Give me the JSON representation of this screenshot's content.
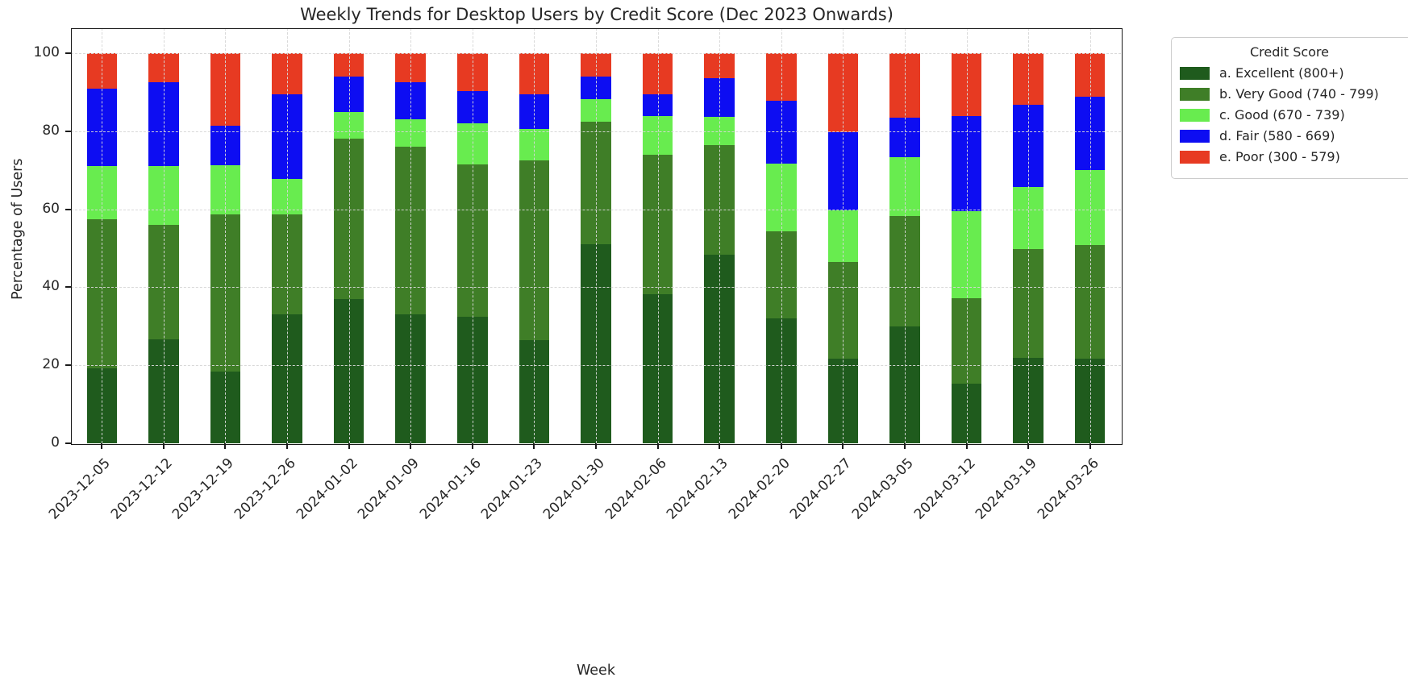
{
  "chart_data": {
    "type": "bar",
    "stacked": true,
    "title": "Weekly Trends for Desktop Users by Credit Score (Dec 2023 Onwards)",
    "xlabel": "Week",
    "ylabel": "Percentage of Users",
    "ylim": [
      0,
      100
    ],
    "yticks": [
      0,
      20,
      40,
      60,
      80,
      100
    ],
    "grid": true,
    "legend_title": "Credit Score",
    "legend_position": "outside-upper-right",
    "categories": [
      "2023-12-05",
      "2023-12-12",
      "2023-12-19",
      "2023-12-26",
      "2024-01-02",
      "2024-01-09",
      "2024-01-16",
      "2024-01-23",
      "2024-01-30",
      "2024-02-06",
      "2024-02-13",
      "2024-02-20",
      "2024-02-27",
      "2024-03-05",
      "2024-03-12",
      "2024-03-19",
      "2024-03-26"
    ],
    "series": [
      {
        "name": "a. Excellent (800+)",
        "color": "#1f5b1d",
        "values": [
          19.3,
          26.7,
          18.3,
          33.1,
          37.0,
          33.0,
          32.5,
          26.5,
          51.0,
          38.3,
          48.3,
          32.0,
          21.7,
          30.0,
          15.3,
          22.0,
          21.7
        ]
      },
      {
        "name": "b. Very Good (740 - 799)",
        "color": "#3f7e27",
        "values": [
          38.2,
          29.3,
          40.3,
          25.5,
          41.0,
          43.0,
          39.0,
          46.0,
          31.5,
          35.7,
          28.2,
          22.3,
          24.8,
          28.3,
          21.9,
          27.8,
          29.2
        ]
      },
      {
        "name": "c. Good (670 - 739)",
        "color": "#68ec4f",
        "values": [
          13.5,
          15.0,
          12.6,
          9.2,
          7.0,
          7.0,
          10.5,
          8.0,
          5.8,
          9.8,
          7.1,
          17.4,
          13.3,
          15.0,
          22.4,
          16.0,
          19.1
        ]
      },
      {
        "name": "d. Fair (580 - 669)",
        "color": "#0d0df2",
        "values": [
          20.0,
          21.5,
          10.3,
          21.6,
          9.0,
          9.5,
          8.3,
          9.0,
          5.8,
          5.7,
          9.9,
          16.2,
          20.0,
          10.1,
          24.3,
          20.9,
          18.8
        ]
      },
      {
        "name": "e. Poor (300 - 579)",
        "color": "#e73a22",
        "values": [
          9.0,
          7.5,
          18.5,
          10.6,
          6.0,
          7.5,
          9.7,
          10.5,
          5.9,
          10.5,
          6.5,
          12.1,
          20.2,
          16.6,
          16.1,
          13.3,
          11.2
        ]
      }
    ]
  }
}
